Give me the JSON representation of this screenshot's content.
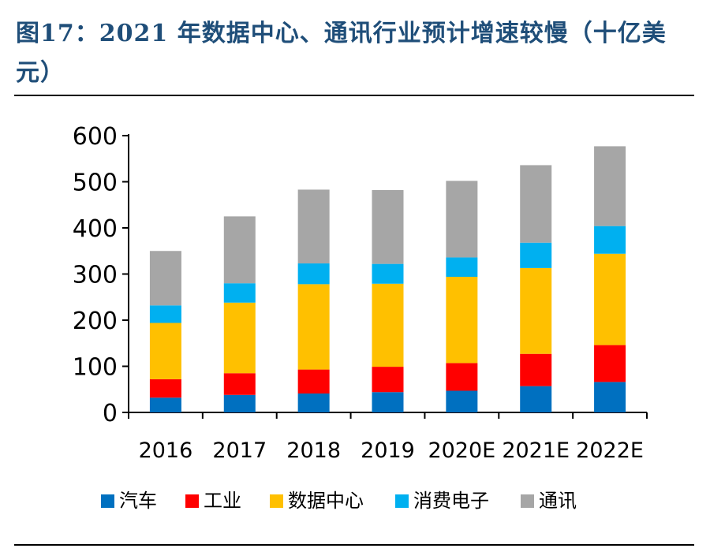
{
  "figure": {
    "title": "图17：2021 年数据中心、通讯行业预计增速较慢（十亿美元）"
  },
  "chart_data": {
    "type": "bar",
    "stacked": true,
    "title": "图17：2021 年数据中心、通讯行业预计增速较慢（十亿美元）",
    "xlabel": "",
    "ylabel": "",
    "ylim": [
      0,
      600
    ],
    "yticks": [
      0,
      100,
      200,
      300,
      400,
      500,
      600
    ],
    "grid": false,
    "legend_position": "bottom",
    "categories": [
      "2016",
      "2017",
      "2018",
      "2019",
      "2020E",
      "2021E",
      "2022E"
    ],
    "series": [
      {
        "name": "汽车",
        "color": "#0070c0",
        "values": [
          32,
          38,
          41,
          44,
          47,
          57,
          66
        ]
      },
      {
        "name": "工业",
        "color": "#ff0000",
        "values": [
          40,
          47,
          52,
          55,
          60,
          70,
          80
        ]
      },
      {
        "name": "数据中心",
        "color": "#ffc000",
        "values": [
          122,
          153,
          185,
          180,
          187,
          186,
          198
        ]
      },
      {
        "name": "消费电子",
        "color": "#00b0f0",
        "values": [
          38,
          42,
          45,
          43,
          42,
          55,
          60
        ]
      },
      {
        "name": "通讯",
        "color": "#a6a6a6",
        "values": [
          118,
          145,
          160,
          160,
          166,
          168,
          173
        ]
      }
    ]
  }
}
